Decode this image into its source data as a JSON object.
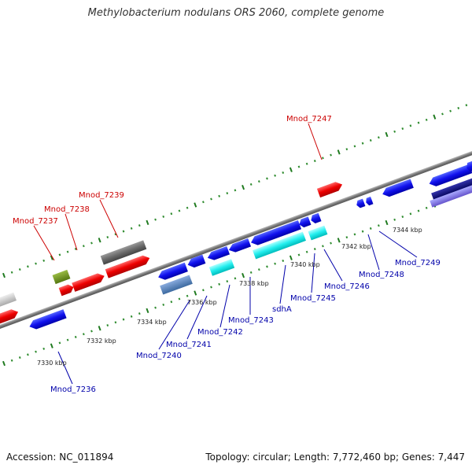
{
  "title": "Methylobacterium nodulans ORS 2060, complete genome",
  "footer": {
    "accession": "Accession: NC_011894",
    "summary": "Topology: circular; Length: 7,772,460 bp; Genes: 7,447"
  },
  "colors": {
    "backbone": "#8a8a8a",
    "tick_major": "#1f7a1f",
    "tick_minor": "#2e8b2e",
    "forward_label": "#cc0000",
    "reverse_label": "#0000aa"
  },
  "ticks": [
    {
      "label": "7330 kbp"
    },
    {
      "label": "7332 kbp"
    },
    {
      "label": "7334 kbp"
    },
    {
      "label": "7336 kbp"
    },
    {
      "label": "7338 kbp"
    },
    {
      "label": "7340 kbp"
    },
    {
      "label": "7342 kbp"
    },
    {
      "label": "7344 kbp"
    }
  ],
  "labels": [
    {
      "text": "Mnod_7237",
      "strand": "forward"
    },
    {
      "text": "Mnod_7238",
      "strand": "forward"
    },
    {
      "text": "Mnod_7239",
      "strand": "forward"
    },
    {
      "text": "Mnod_7247",
      "strand": "forward"
    },
    {
      "text": "Mnod_7236",
      "strand": "reverse"
    },
    {
      "text": "Mnod_7240",
      "strand": "reverse"
    },
    {
      "text": "Mnod_7241",
      "strand": "reverse"
    },
    {
      "text": "Mnod_7242",
      "strand": "reverse"
    },
    {
      "text": "Mnod_7243",
      "strand": "reverse"
    },
    {
      "text": "sdhA",
      "strand": "reverse"
    },
    {
      "text": "Mnod_7245",
      "strand": "reverse"
    },
    {
      "text": "Mnod_7246",
      "strand": "reverse"
    },
    {
      "text": "Mnod_7248",
      "strand": "reverse"
    },
    {
      "text": "Mnod_7249",
      "strand": "reverse"
    }
  ]
}
